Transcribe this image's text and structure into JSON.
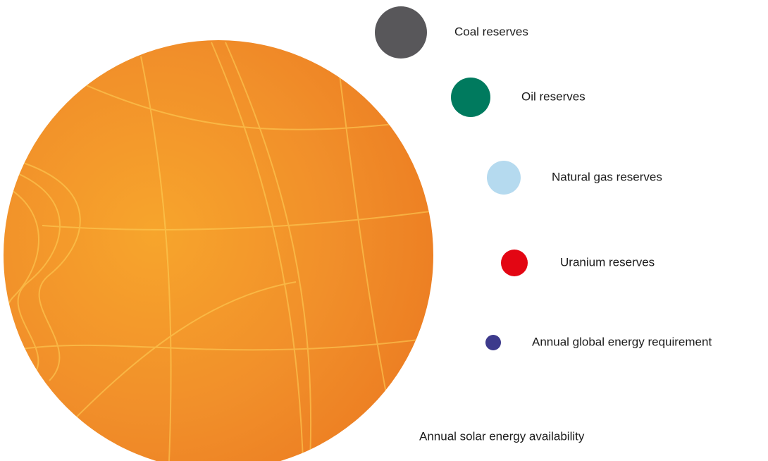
{
  "items": [
    {
      "label": "Coal reserves",
      "color": "#58575a"
    },
    {
      "label": "Oil reserves",
      "color": "#007a5e"
    },
    {
      "label": "Natural gas reserves",
      "color": "#b5daef"
    },
    {
      "label": "Uranium reserves",
      "color": "#e30613"
    },
    {
      "label": "Annual global energy requirement",
      "color": "#3d3a8c"
    }
  ],
  "sun": {
    "label": "Annual solar energy availability"
  }
}
